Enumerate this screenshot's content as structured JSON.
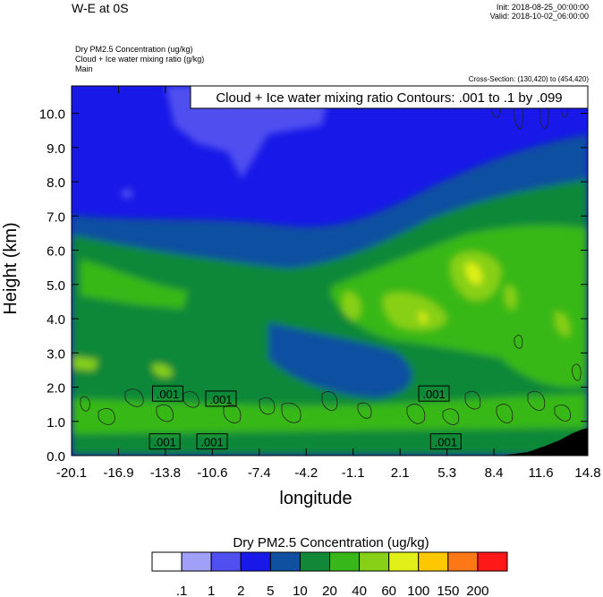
{
  "header": {
    "title": "W-E at 0S",
    "init": "Init: 2018-08-25_00:00:00",
    "valid": "Valid: 2018-10-02_06:00:00",
    "subtitles": [
      "Dry PM2.5 Concentration   (ug/kg)",
      "Cloud + Ice water mixing ratio   (g/kg)",
      "Main"
    ],
    "cross_section": "Cross-Section: (130,420) to (454,420)",
    "contour_note": "Cloud + Ice water mixing ratio Contours: .001 to .1 by .099"
  },
  "chart_data": {
    "type": "heatmap",
    "xlabel": "longitude",
    "ylabel": "Height (km)",
    "xlim": [
      -20.1,
      14.8
    ],
    "ylim": [
      0,
      10.8
    ],
    "x_ticks": [
      "-20.1",
      "-16.9",
      "-13.8",
      "-10.6",
      "-7.4",
      "-4.2",
      "-1.1",
      "2.1",
      "5.3",
      "8.4",
      "11.6",
      "14.8"
    ],
    "y_ticks": [
      "0.0",
      "1.0",
      "2.0",
      "3.0",
      "4.0",
      "5.0",
      "6.0",
      "7.0",
      "8.0",
      "9.0",
      "10.0"
    ],
    "colorbar": {
      "title": "Dry PM2.5 Concentration  (ug/kg)",
      "labels": [
        ".1",
        "1",
        "2",
        "5",
        "10",
        "20",
        "40",
        "60",
        "100",
        "150",
        "200"
      ],
      "colors": [
        "#ffffff",
        "#a0a0f8",
        "#5050f0",
        "#1818e8",
        "#1050a0",
        "#108838",
        "#38b818",
        "#88d018",
        "#e0f018",
        "#ffc800",
        "#ff7818",
        "#ff1818"
      ]
    },
    "contour_labels": [
      ".001",
      ".001",
      ".001",
      ".001",
      ".001",
      ".001",
      ".001"
    ]
  }
}
